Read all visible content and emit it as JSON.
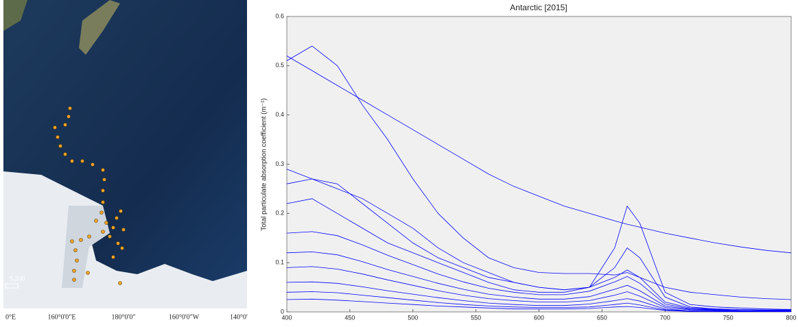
{
  "map": {
    "scale_label": "5,200",
    "lon_labels": [
      "0°E",
      "160°0'0\"E",
      "180°0'0\"",
      "160°0'0\"W",
      "140°0'"
    ]
  },
  "chart_data": {
    "type": "line",
    "title": "Antarctic [2015]",
    "ylabel": "Total particulate absorption coefficient (m⁻¹)",
    "color": "#0000ff",
    "x": [
      400,
      420,
      440,
      460,
      480,
      500,
      520,
      540,
      560,
      580,
      600,
      620,
      640,
      660,
      670,
      680,
      700,
      720,
      740,
      760,
      780,
      800
    ],
    "series": [
      {
        "values": [
          0.52,
          0.49,
          0.46,
          0.43,
          0.4,
          0.37,
          0.34,
          0.31,
          0.28,
          0.255,
          0.235,
          0.215,
          0.2,
          0.185,
          0.178,
          0.172,
          0.16,
          0.15,
          0.14,
          0.132,
          0.125,
          0.12
        ]
      },
      {
        "values": [
          0.51,
          0.54,
          0.5,
          0.42,
          0.35,
          0.27,
          0.2,
          0.15,
          0.11,
          0.09,
          0.08,
          0.078,
          0.078,
          0.075,
          0.08,
          0.07,
          0.05,
          0.04,
          0.035,
          0.03,
          0.027,
          0.025
        ]
      },
      {
        "values": [
          0.29,
          0.27,
          0.25,
          0.23,
          0.2,
          0.17,
          0.13,
          0.1,
          0.08,
          0.06,
          0.05,
          0.045,
          0.05,
          0.13,
          0.215,
          0.18,
          0.04,
          0.015,
          0.01,
          0.008,
          0.006,
          0.005
        ]
      },
      {
        "values": [
          0.26,
          0.27,
          0.26,
          0.22,
          0.18,
          0.14,
          0.11,
          0.09,
          0.07,
          0.06,
          0.05,
          0.045,
          0.05,
          0.09,
          0.13,
          0.11,
          0.03,
          0.01,
          0.006,
          0.005,
          0.004,
          0.004
        ]
      },
      {
        "values": [
          0.22,
          0.23,
          0.2,
          0.17,
          0.14,
          0.12,
          0.1,
          0.08,
          0.06,
          0.045,
          0.04,
          0.04,
          0.05,
          0.07,
          0.085,
          0.07,
          0.02,
          0.008,
          0.006,
          0.005,
          0.004,
          0.004
        ]
      },
      {
        "values": [
          0.16,
          0.163,
          0.155,
          0.136,
          0.115,
          0.096,
          0.077,
          0.061,
          0.048,
          0.04,
          0.035,
          0.035,
          0.042,
          0.061,
          0.072,
          0.058,
          0.016,
          0.006,
          0.005,
          0.003,
          0.003,
          0.003
        ]
      },
      {
        "values": [
          0.12,
          0.122,
          0.116,
          0.102,
          0.086,
          0.072,
          0.058,
          0.046,
          0.036,
          0.03,
          0.026,
          0.026,
          0.031,
          0.046,
          0.054,
          0.043,
          0.012,
          0.005,
          0.004,
          0.002,
          0.002,
          0.002
        ]
      },
      {
        "values": [
          0.09,
          0.092,
          0.087,
          0.077,
          0.065,
          0.054,
          0.043,
          0.034,
          0.027,
          0.023,
          0.02,
          0.02,
          0.023,
          0.034,
          0.041,
          0.032,
          0.009,
          0.004,
          0.003,
          0.002,
          0.002,
          0.002
        ]
      },
      {
        "values": [
          0.06,
          0.061,
          0.058,
          0.051,
          0.043,
          0.036,
          0.029,
          0.023,
          0.018,
          0.015,
          0.013,
          0.013,
          0.016,
          0.023,
          0.027,
          0.022,
          0.006,
          0.002,
          0.002,
          0.001,
          0.001,
          0.001
        ]
      },
      {
        "values": [
          0.04,
          0.041,
          0.039,
          0.034,
          0.029,
          0.024,
          0.019,
          0.015,
          0.012,
          0.01,
          0.009,
          0.009,
          0.01,
          0.015,
          0.018,
          0.014,
          0.004,
          0.002,
          0.001,
          0.001,
          0.001,
          0.001
        ]
      },
      {
        "values": [
          0.025,
          0.026,
          0.024,
          0.021,
          0.018,
          0.015,
          0.012,
          0.01,
          0.008,
          0.006,
          0.006,
          0.006,
          0.007,
          0.01,
          0.011,
          0.009,
          0.003,
          0.001,
          0.001,
          0.001,
          0.001,
          0.001
        ]
      }
    ],
    "xlim": [
      400,
      800
    ],
    "xticks": [
      400,
      450,
      500,
      550,
      600,
      650,
      700,
      750,
      800
    ],
    "ylim": [
      0,
      0.6
    ],
    "yticks": [
      0,
      0.1,
      0.2,
      0.3,
      0.4,
      0.5,
      0.6
    ]
  }
}
